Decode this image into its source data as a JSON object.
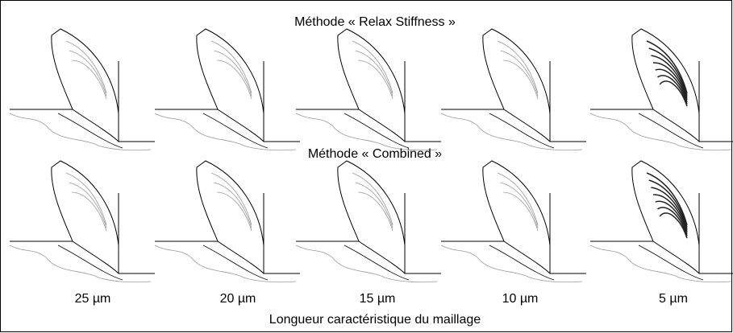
{
  "rows": [
    {
      "title": "Méthode « Relax Stiffness »"
    },
    {
      "title": "Méthode « Combined »"
    }
  ],
  "columns": [
    "25 µm",
    "20 µm",
    "15 µm",
    "10 µm",
    "5 µm"
  ],
  "footer": "Longueur caractéristique du maillage"
}
